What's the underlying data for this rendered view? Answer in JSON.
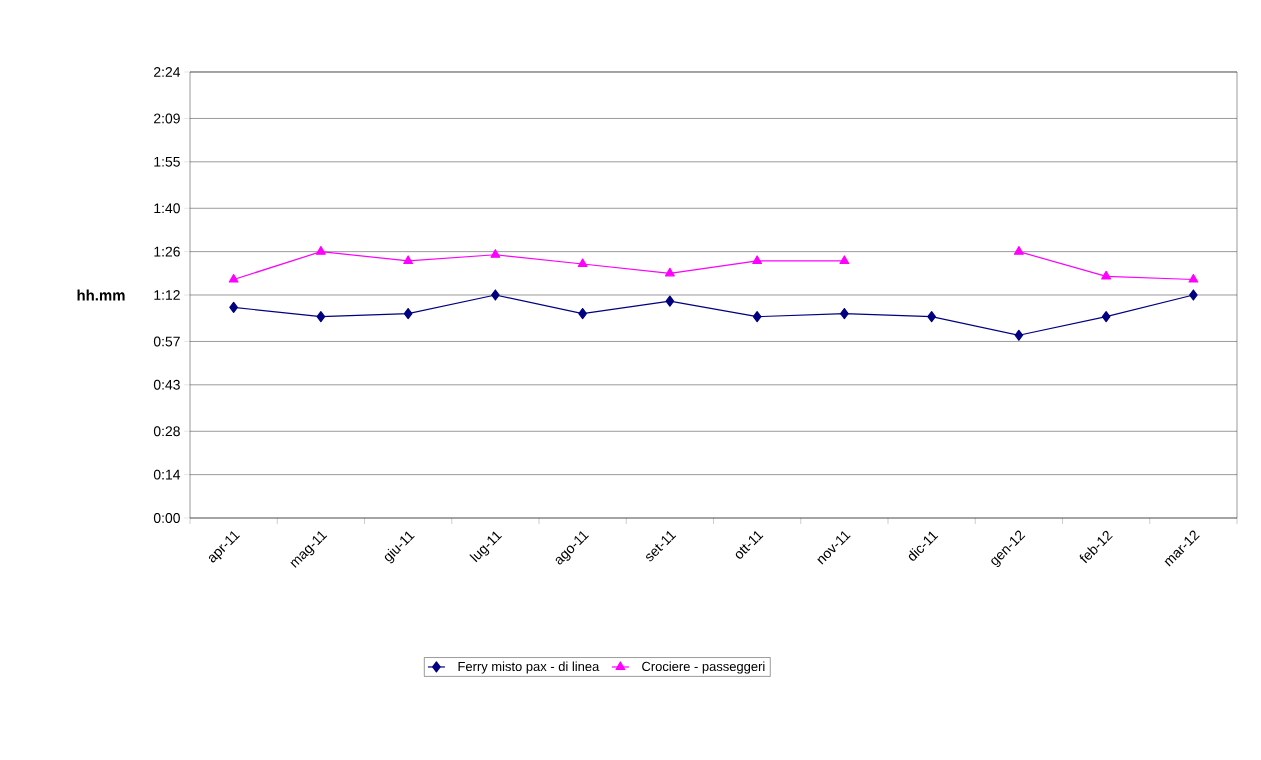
{
  "chart_data": {
    "type": "line",
    "ylabel": "hh.mm",
    "categories": [
      "apr-11",
      "mag-11",
      "giu-11",
      "lug-11",
      "ago-11",
      "set-11",
      "ott-11",
      "nov-11",
      "dic-11",
      "gen-12",
      "feb-12",
      "mar-12"
    ],
    "series": [
      {
        "name": "Ferry misto pax - di linea",
        "color": "#000080",
        "marker": "diamond",
        "values": [
          68,
          65,
          66,
          72,
          66,
          70,
          65,
          66,
          65,
          59,
          65,
          72
        ]
      },
      {
        "name": "Crociere - passeggeri",
        "color": "#ff00ff",
        "marker": "triangle",
        "values": [
          77,
          86,
          83,
          85,
          82,
          79,
          83,
          83,
          null,
          86,
          78,
          77
        ]
      }
    ],
    "ylim": [
      0,
      144
    ],
    "yticks": [
      {
        "value": 0,
        "label": "0:00"
      },
      {
        "value": 14,
        "label": "0:14"
      },
      {
        "value": 28,
        "label": "0:28"
      },
      {
        "value": 43,
        "label": "0:43"
      },
      {
        "value": 57,
        "label": "0:57"
      },
      {
        "value": 72,
        "label": "1:12"
      },
      {
        "value": 86,
        "label": "1:26"
      },
      {
        "value": 100,
        "label": "1:40"
      },
      {
        "value": 115,
        "label": "1:55"
      },
      {
        "value": 129,
        "label": "2:09"
      },
      {
        "value": 144,
        "label": "2:24"
      }
    ],
    "grid": "y",
    "legend": "bottom",
    "line_style": "solid"
  }
}
